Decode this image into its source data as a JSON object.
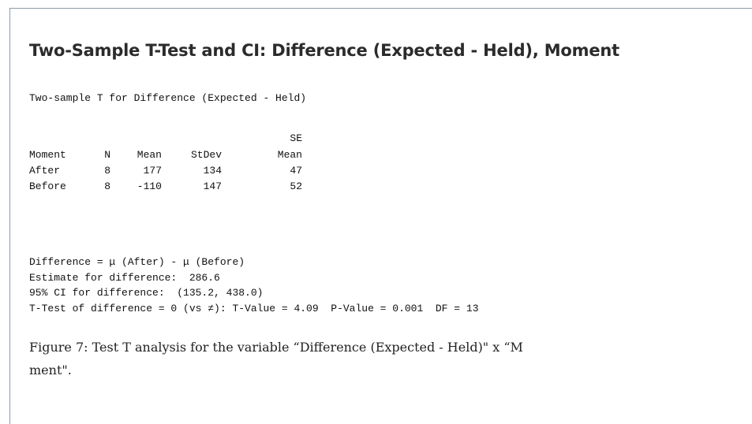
{
  "title": "Two-Sample T-Test and CI: Difference (Expected - Held), Moment",
  "subtitle": "Two-sample T for Difference (Expected - Held)",
  "table": {
    "header_top": "SE",
    "columns": [
      "Moment",
      "N",
      "Mean",
      "StDev",
      "Mean"
    ],
    "rows": [
      [
        "After",
        8,
        177,
        134,
        47
      ],
      [
        "Before",
        8,
        -110,
        147,
        52
      ]
    ]
  },
  "results": [
    "Difference = μ (After) - μ (Before)",
    "Estimate for difference:  286.6",
    "95% CI for difference:  (135.2, 438.0)",
    "T-Test of difference = 0 (vs ≠): T-Value = 4.09  P-Value = 0.001  DF = 13"
  ],
  "caption": [
    "Figure 7: Test T analysis for the variable “Difference (Expected - Held)\" x “M",
    "ment\"."
  ]
}
